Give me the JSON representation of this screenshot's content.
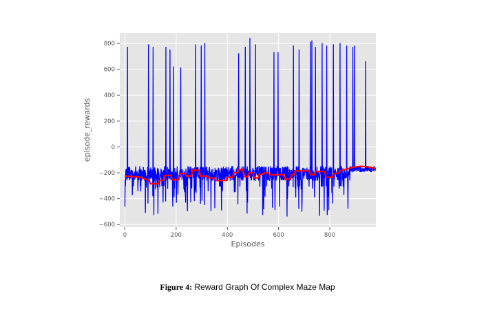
{
  "caption": {
    "number": "Figure 4:",
    "text": " Reward Graph Of Complex Maze Map"
  },
  "chart_data": {
    "type": "line",
    "title": "",
    "xlabel": "Episodes",
    "ylabel": "episode_rewards",
    "xlim": [
      -20,
      980
    ],
    "ylim": [
      -620,
      880
    ],
    "xticks": [
      0,
      200,
      400,
      600,
      800
    ],
    "yticks": [
      -600,
      -400,
      -200,
      0,
      200,
      400,
      600,
      800
    ],
    "grid": true,
    "background": "#e5e5e5",
    "grid_color": "#ffffff",
    "series": [
      {
        "role": "episode rewards (noisy)",
        "color": "#0000ff",
        "episodes": [
          0,
          979
        ],
        "baseline_band": [
          -260,
          -150
        ],
        "dip_range": [
          -540,
          -300
        ],
        "spikes": [
          {
            "x": 10,
            "y": 770
          },
          {
            "x": 92,
            "y": 790
          },
          {
            "x": 110,
            "y": 770
          },
          {
            "x": 160,
            "y": 770
          },
          {
            "x": 176,
            "y": 750
          },
          {
            "x": 190,
            "y": 620
          },
          {
            "x": 218,
            "y": 610
          },
          {
            "x": 276,
            "y": 790
          },
          {
            "x": 298,
            "y": 780
          },
          {
            "x": 312,
            "y": 800
          },
          {
            "x": 444,
            "y": 720
          },
          {
            "x": 470,
            "y": 770
          },
          {
            "x": 488,
            "y": 840
          },
          {
            "x": 510,
            "y": 790
          },
          {
            "x": 582,
            "y": 730
          },
          {
            "x": 598,
            "y": 730
          },
          {
            "x": 658,
            "y": 780
          },
          {
            "x": 680,
            "y": 750
          },
          {
            "x": 724,
            "y": 810
          },
          {
            "x": 730,
            "y": 820
          },
          {
            "x": 744,
            "y": 770
          },
          {
            "x": 770,
            "y": 800
          },
          {
            "x": 788,
            "y": 780
          },
          {
            "x": 814,
            "y": 790
          },
          {
            "x": 840,
            "y": 800
          },
          {
            "x": 866,
            "y": 780
          },
          {
            "x": 890,
            "y": 770
          },
          {
            "x": 896,
            "y": 780
          },
          {
            "x": 940,
            "y": 660
          }
        ]
      },
      {
        "role": "moving average",
        "color": "#ff0000",
        "points": [
          [
            0,
            -225
          ],
          [
            20,
            -228
          ],
          [
            40,
            -230
          ],
          [
            60,
            -235
          ],
          [
            80,
            -248
          ],
          [
            95,
            -260
          ],
          [
            100,
            -285
          ],
          [
            130,
            -285
          ],
          [
            135,
            -260
          ],
          [
            150,
            -258
          ],
          [
            155,
            -220
          ],
          [
            180,
            -220
          ],
          [
            185,
            -255
          ],
          [
            210,
            -255
          ],
          [
            215,
            -205
          ],
          [
            235,
            -205
          ],
          [
            240,
            -225
          ],
          [
            260,
            -225
          ],
          [
            265,
            -180
          ],
          [
            290,
            -180
          ],
          [
            295,
            -225
          ],
          [
            320,
            -225
          ],
          [
            325,
            -240
          ],
          [
            350,
            -240
          ],
          [
            355,
            -260
          ],
          [
            395,
            -260
          ],
          [
            400,
            -235
          ],
          [
            420,
            -235
          ],
          [
            425,
            -200
          ],
          [
            440,
            -200
          ],
          [
            445,
            -175
          ],
          [
            460,
            -175
          ],
          [
            465,
            -230
          ],
          [
            480,
            -230
          ],
          [
            485,
            -200
          ],
          [
            500,
            -200
          ],
          [
            505,
            -240
          ],
          [
            520,
            -240
          ],
          [
            525,
            -210
          ],
          [
            540,
            -210
          ],
          [
            545,
            -200
          ],
          [
            560,
            -200
          ],
          [
            565,
            -215
          ],
          [
            620,
            -215
          ],
          [
            625,
            -250
          ],
          [
            645,
            -250
          ],
          [
            650,
            -215
          ],
          [
            660,
            -215
          ],
          [
            665,
            -185
          ],
          [
            720,
            -185
          ],
          [
            725,
            -215
          ],
          [
            740,
            -215
          ],
          [
            745,
            -190
          ],
          [
            780,
            -190
          ],
          [
            785,
            -235
          ],
          [
            810,
            -235
          ],
          [
            815,
            -205
          ],
          [
            830,
            -205
          ],
          [
            840,
            -185
          ],
          [
            860,
            -175
          ],
          [
            880,
            -162
          ],
          [
            900,
            -155
          ],
          [
            920,
            -150
          ],
          [
            945,
            -153
          ],
          [
            960,
            -158
          ],
          [
            979,
            -168
          ]
        ]
      }
    ]
  }
}
